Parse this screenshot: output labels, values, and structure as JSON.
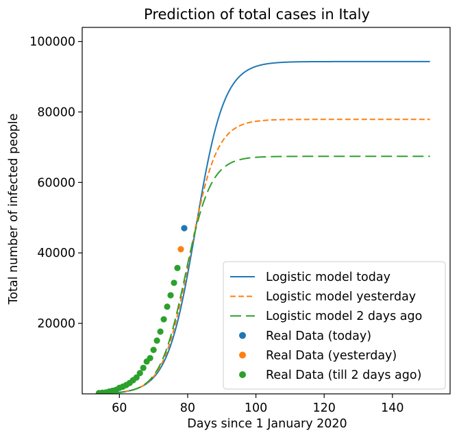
{
  "chart_data": {
    "type": "line",
    "title": "Prediction of total cases in Italy",
    "xlabel": "Days since 1 January 2020",
    "ylabel": "Total number of infected people",
    "xlim": [
      49.1,
      156.9
    ],
    "ylim": [
      0,
      104000
    ],
    "xticks": [
      60,
      80,
      100,
      120,
      140
    ],
    "yticks": [
      20000,
      40000,
      60000,
      80000,
      100000
    ],
    "grid": false,
    "legend_position": "lower-right",
    "series": [
      {
        "name": "Logistic model today",
        "kind": "line",
        "style": "solid",
        "color": "#1f77b4",
        "model": {
          "a": 4.18,
          "b": 82.4,
          "c": 94300
        },
        "x_range": [
          54,
          151
        ]
      },
      {
        "name": "Logistic model yesterday",
        "kind": "line",
        "style": "dashed",
        "color": "#ff7f0e",
        "model": {
          "a": 3.92,
          "b": 80.6,
          "c": 77900
        },
        "x_range": [
          54,
          151
        ]
      },
      {
        "name": "Logistic model 2 days ago",
        "kind": "line",
        "style": "longdash",
        "color": "#2ca02c",
        "model": {
          "a": 3.75,
          "b": 79.3,
          "c": 67400
        },
        "x_range": [
          54,
          151
        ]
      },
      {
        "name": "Real Data (today)",
        "kind": "scatter",
        "color": "#1f77b4",
        "points": [
          [
            79,
            47021
          ]
        ]
      },
      {
        "name": "Real Data (yesterday)",
        "kind": "scatter",
        "color": "#ff7f0e",
        "points": [
          [
            78,
            41035
          ]
        ]
      },
      {
        "name": "Real Data (till 2 days ago)",
        "kind": "scatter",
        "color": "#2ca02c",
        "points": [
          [
            54,
            229
          ],
          [
            55,
            322
          ],
          [
            56,
            400
          ],
          [
            57,
            650
          ],
          [
            58,
            888
          ],
          [
            59,
            1128
          ],
          [
            60,
            1694
          ],
          [
            61,
            2036
          ],
          [
            62,
            2502
          ],
          [
            63,
            3089
          ],
          [
            64,
            3858
          ],
          [
            65,
            4636
          ],
          [
            66,
            5883
          ],
          [
            67,
            7375
          ],
          [
            68,
            9172
          ],
          [
            69,
            10149
          ],
          [
            70,
            12462
          ],
          [
            71,
            15113
          ],
          [
            72,
            17660
          ],
          [
            73,
            21157
          ],
          [
            74,
            24747
          ],
          [
            75,
            27980
          ],
          [
            76,
            31506
          ],
          [
            77,
            35713
          ]
        ]
      }
    ]
  }
}
